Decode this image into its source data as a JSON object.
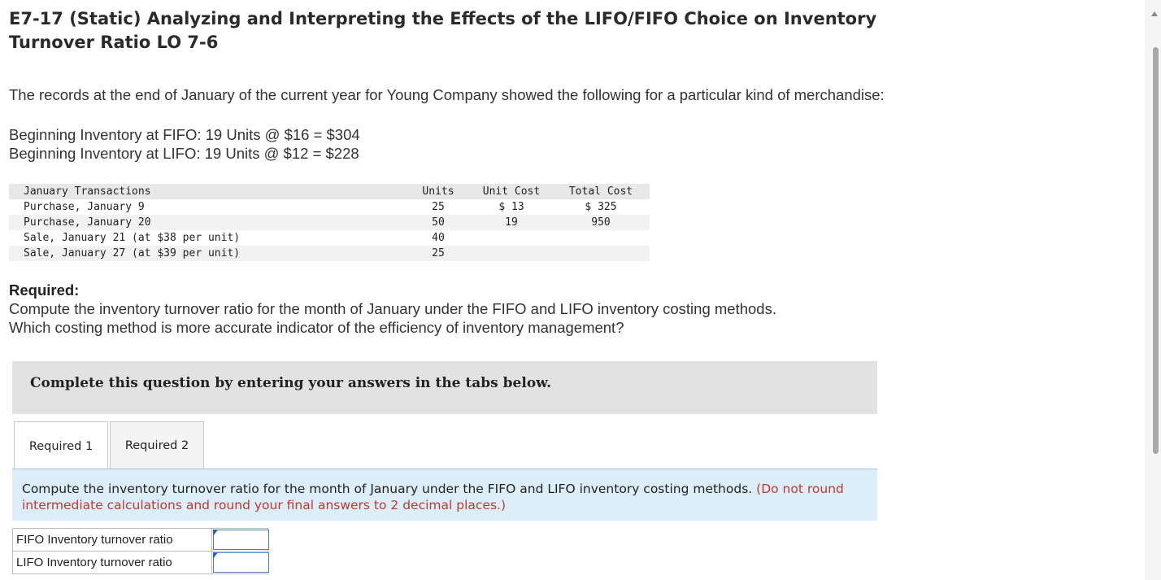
{
  "title": "E7-17 (Static) Analyzing and Interpreting the Effects of the LIFO/FIFO Choice on Inventory Turnover Ratio LO 7-6",
  "intro": "The records at the end of January of the current year for Young Company showed the following for a particular kind of merchandise:",
  "beginning_inventory": {
    "fifo": "Beginning Inventory at FIFO: 19 Units @ $16 = $304",
    "lifo": "Beginning Inventory at LIFO: 19 Units @ $12 = $228"
  },
  "transactions": {
    "headers": [
      "January Transactions",
      "Units",
      "Unit Cost",
      "Total Cost"
    ],
    "rows": [
      [
        "Purchase, January 9",
        "25",
        "$ 13",
        "$ 325"
      ],
      [
        "Purchase, January 20",
        "50",
        "19",
        "950"
      ],
      [
        "Sale, January 21 (at $38 per unit)",
        "40",
        "",
        ""
      ],
      [
        "Sale, January 27 (at $39 per unit)",
        "25",
        "",
        ""
      ]
    ]
  },
  "required": {
    "heading": "Required:",
    "line1": "Compute the inventory turnover ratio for the month of January under the FIFO and LIFO inventory costing methods.",
    "line2": "Which costing method is more accurate indicator of the efficiency of inventory management?"
  },
  "banner": "Complete this question by entering your answers in the tabs below.",
  "tabs": [
    {
      "label": "Required 1",
      "active": true
    },
    {
      "label": "Required 2",
      "active": false
    }
  ],
  "instructions": {
    "text": "Compute the inventory turnover ratio for the month of January under the FIFO and LIFO inventory costing methods.",
    "note": "(Do not round intermediate calculations and round your final answers to 2 decimal places.)"
  },
  "answers": [
    {
      "label": "FIFO Inventory turnover ratio",
      "value": ""
    },
    {
      "label": "LIFO Inventory turnover ratio",
      "value": ""
    }
  ],
  "colors": {
    "note": "#c0392b",
    "instruction_bg": "#ddeefb",
    "banner_bg": "#e2e2e2",
    "input_border": "#4a7fc0"
  }
}
